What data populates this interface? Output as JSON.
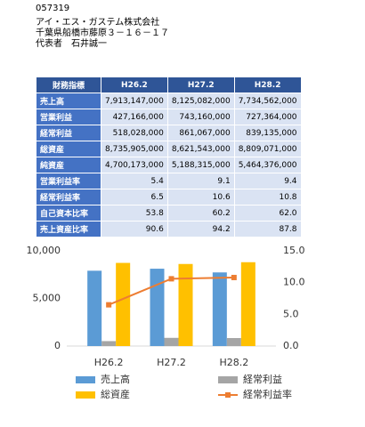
{
  "header": {
    "code": "057319",
    "company": "アイ・エス・ガステム株式会社",
    "address": "千葉県船橋市藤原３－１６－１７",
    "representative": "代表者　石井誠一"
  },
  "table": {
    "columns": [
      "財務指標",
      "H26.2",
      "H27.2",
      "H28.2"
    ],
    "rows": [
      [
        "売上高",
        "7,913,147,000",
        "8,125,082,000",
        "7,734,562,000"
      ],
      [
        "営業利益",
        "427,166,000",
        "743,160,000",
        "727,364,000"
      ],
      [
        "経常利益",
        "518,028,000",
        "861,067,000",
        "839,135,000"
      ],
      [
        "総資産",
        "8,735,905,000",
        "8,621,543,000",
        "8,809,071,000"
      ],
      [
        "純資産",
        "4,700,173,000",
        "5,188,315,000",
        "5,464,376,000"
      ],
      [
        "営業利益率",
        "5.4",
        "9.1",
        "9.4"
      ],
      [
        "経常利益率",
        "6.5",
        "10.6",
        "10.8"
      ],
      [
        "自己資本比率",
        "53.8",
        "60.2",
        "62.0"
      ],
      [
        "売上資産比率",
        "90.6",
        "94.2",
        "87.8"
      ]
    ]
  },
  "chart_data": {
    "type": "bar",
    "categories": [
      "H26.2",
      "H27.2",
      "H28.2"
    ],
    "ylim": [
      0,
      10000
    ],
    "yticks": [
      0,
      {
        "value": 5000,
        "label": "5,000"
      },
      {
        "value": 10000,
        "label": "10,000"
      }
    ],
    "y2lim": [
      0,
      15
    ],
    "y2ticks": [
      {
        "value": 0,
        "label": "0.0"
      },
      {
        "value": 5,
        "label": "5.0"
      },
      {
        "value": 10,
        "label": "10.0"
      },
      {
        "value": 15,
        "label": "15.0"
      }
    ],
    "grid": false,
    "series": [
      {
        "name": "売上高",
        "color": "#5b9bd5",
        "values": [
          7913,
          8125,
          7735
        ]
      },
      {
        "name": "経常利益",
        "color": "#a5a5a5",
        "values": [
          518,
          861,
          839
        ]
      },
      {
        "name": "総資産",
        "color": "#ffc000",
        "values": [
          8736,
          8622,
          8809
        ]
      },
      {
        "name": "経常利益率",
        "color": "#ed7d31",
        "type": "line",
        "axis": "y2",
        "values": [
          6.5,
          10.6,
          10.8
        ]
      }
    ]
  }
}
